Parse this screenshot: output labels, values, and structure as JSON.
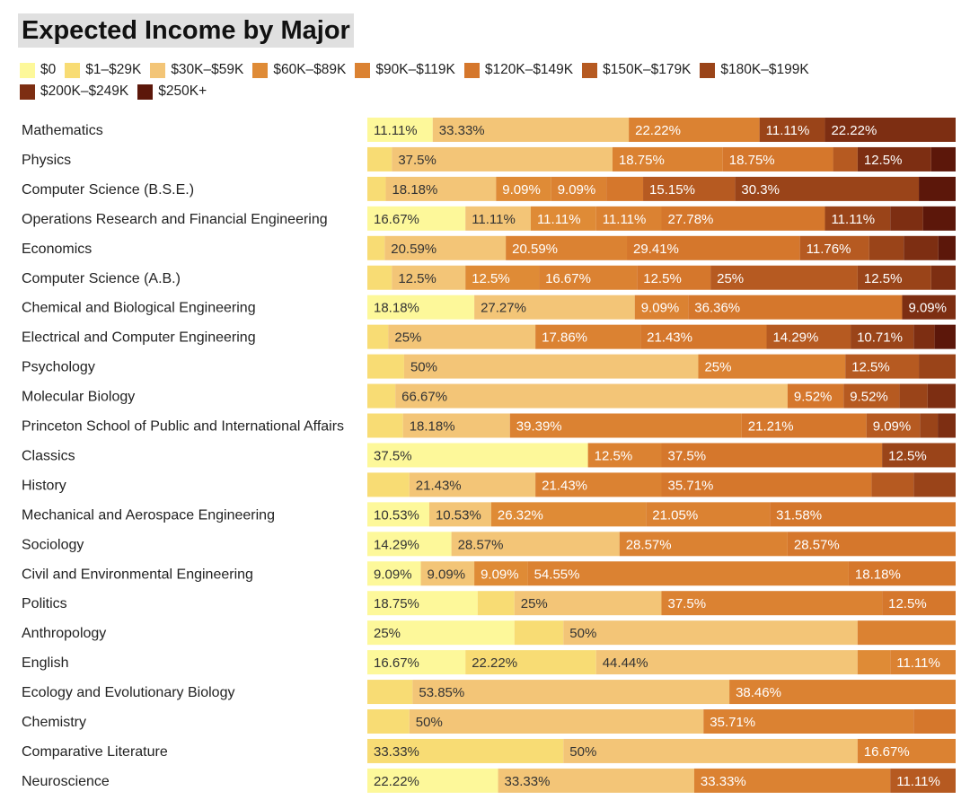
{
  "chart_data": {
    "type": "bar",
    "orientation": "horizontal",
    "stacked": true,
    "normalized": true,
    "title": "Expected Income by Major",
    "legend_position": "top",
    "brackets": [
      {
        "name": "$0",
        "color": "#fdf89a"
      },
      {
        "name": "$1–$29K",
        "color": "#f8dc74"
      },
      {
        "name": "$30K–$59K",
        "color": "#f3c577"
      },
      {
        "name": "$60K–$89K",
        "color": "#df8b36"
      },
      {
        "name": "$90K–$119K",
        "color": "#db8232"
      },
      {
        "name": "$120K–$149K",
        "color": "#d5772c"
      },
      {
        "name": "$150K–$179K",
        "color": "#b65a21"
      },
      {
        "name": "$180K–$199K",
        "color": "#9a4419"
      },
      {
        "name": "$200K–$249K",
        "color": "#7d2e12"
      },
      {
        "name": "$250K+",
        "color": "#5c170a"
      }
    ],
    "rows": [
      {
        "major": "Mathematics",
        "values": [
          11.11,
          0,
          33.33,
          0,
          22.22,
          0,
          0,
          11.11,
          22.22,
          0
        ]
      },
      {
        "major": "Physics",
        "values": [
          0,
          4.17,
          37.5,
          0,
          18.75,
          18.75,
          4.17,
          0,
          12.5,
          4.16
        ]
      },
      {
        "major": "Computer Science (B.S.E.)",
        "values": [
          0,
          3.03,
          18.18,
          9.09,
          9.09,
          6.06,
          15.15,
          30.3,
          0,
          6.06
        ]
      },
      {
        "major": "Operations Research and Financial Engineering",
        "values": [
          16.67,
          0,
          11.11,
          11.11,
          11.11,
          27.78,
          0,
          11.11,
          5.56,
          5.55
        ]
      },
      {
        "major": "Economics",
        "values": [
          0,
          2.94,
          20.59,
          0,
          20.59,
          29.41,
          11.76,
          5.88,
          5.88,
          2.94
        ]
      },
      {
        "major": "Computer Science (A.B.)",
        "values": [
          0,
          4.17,
          12.5,
          12.5,
          16.67,
          12.5,
          25,
          12.5,
          4.16,
          0
        ]
      },
      {
        "major": "Chemical and Biological Engineering",
        "values": [
          18.18,
          0,
          27.27,
          0,
          9.09,
          36.36,
          0,
          0,
          9.09,
          0
        ]
      },
      {
        "major": "Electrical and Computer Engineering",
        "values": [
          0,
          3.57,
          25,
          0,
          17.86,
          21.43,
          14.29,
          10.71,
          3.57,
          3.57
        ]
      },
      {
        "major": "Psychology",
        "values": [
          0,
          6.25,
          50,
          0,
          25,
          0,
          12.5,
          6.25,
          0,
          0
        ]
      },
      {
        "major": "Molecular Biology",
        "values": [
          0,
          4.76,
          66.67,
          0,
          0,
          9.52,
          9.52,
          4.76,
          4.77,
          0
        ]
      },
      {
        "major": "Princeton School of Public and International Affairs",
        "values": [
          0,
          6.06,
          18.18,
          0,
          39.39,
          21.21,
          9.09,
          3.03,
          3.04,
          0
        ]
      },
      {
        "major": "Classics",
        "values": [
          37.5,
          0,
          0,
          0,
          12.5,
          37.5,
          0,
          12.5,
          0,
          0
        ]
      },
      {
        "major": "History",
        "values": [
          0,
          7.14,
          21.43,
          0,
          21.43,
          35.71,
          7.15,
          7.14,
          0,
          0
        ]
      },
      {
        "major": "Mechanical and Aerospace Engineering",
        "values": [
          10.53,
          0,
          10.53,
          26.32,
          21.05,
          31.58,
          0,
          0,
          0,
          0
        ]
      },
      {
        "major": "Sociology",
        "values": [
          14.29,
          0,
          28.57,
          0,
          28.57,
          28.57,
          0,
          0,
          0,
          0
        ]
      },
      {
        "major": "Civil and Environmental Engineering",
        "values": [
          9.09,
          0,
          9.09,
          9.09,
          54.55,
          18.18,
          0,
          0,
          0,
          0
        ]
      },
      {
        "major": "Politics",
        "values": [
          18.75,
          6.25,
          25,
          0,
          37.5,
          12.5,
          0,
          0,
          0,
          0
        ]
      },
      {
        "major": "Anthropology",
        "values": [
          25,
          8.33,
          50,
          0,
          16.67,
          0,
          0,
          0,
          0,
          0
        ]
      },
      {
        "major": "English",
        "values": [
          16.67,
          22.22,
          44.44,
          5.56,
          11.11,
          0,
          0,
          0,
          0,
          0
        ]
      },
      {
        "major": "Ecology and Evolutionary Biology",
        "values": [
          0,
          7.69,
          53.85,
          0,
          38.46,
          0,
          0,
          0,
          0,
          0
        ]
      },
      {
        "major": "Chemistry",
        "values": [
          0,
          7.14,
          50,
          0,
          35.71,
          7.15,
          0,
          0,
          0,
          0
        ]
      },
      {
        "major": "Comparative Literature",
        "values": [
          0,
          33.33,
          50,
          0,
          16.67,
          0,
          0,
          0,
          0,
          0
        ]
      },
      {
        "major": "Neuroscience",
        "values": [
          22.22,
          0,
          33.33,
          0,
          33.33,
          0,
          11.11,
          0,
          0,
          0
        ]
      }
    ],
    "labeled_segments": [
      [
        [
          0,
          "11.11%"
        ],
        [
          2,
          "33.33%"
        ],
        [
          4,
          "22.22%"
        ],
        [
          7,
          "11.11%"
        ],
        [
          8,
          "22.22%"
        ]
      ],
      [
        [
          2,
          "37.5%"
        ],
        [
          4,
          "18.75%"
        ],
        [
          5,
          "18.75%"
        ],
        [
          8,
          "12.5%"
        ]
      ],
      [
        [
          2,
          "18.18%"
        ],
        [
          3,
          "9.09%"
        ],
        [
          4,
          "9.09%"
        ],
        [
          6,
          "15.15%"
        ],
        [
          7,
          "30.3%"
        ]
      ],
      [
        [
          0,
          "16.67%"
        ],
        [
          2,
          "11.11%"
        ],
        [
          3,
          "11.11%"
        ],
        [
          4,
          "11.11%"
        ],
        [
          5,
          "27.78%"
        ],
        [
          7,
          "11.11%"
        ]
      ],
      [
        [
          2,
          "20.59%"
        ],
        [
          4,
          "20.59%"
        ],
        [
          5,
          "29.41%"
        ],
        [
          6,
          "11.76%"
        ]
      ],
      [
        [
          2,
          "12.5%"
        ],
        [
          3,
          "12.5%"
        ],
        [
          4,
          "16.67%"
        ],
        [
          5,
          "12.5%"
        ],
        [
          6,
          "25%"
        ],
        [
          7,
          "12.5%"
        ]
      ],
      [
        [
          0,
          "18.18%"
        ],
        [
          2,
          "27.27%"
        ],
        [
          4,
          "9.09%"
        ],
        [
          5,
          "36.36%"
        ],
        [
          8,
          "9.09%"
        ]
      ],
      [
        [
          2,
          "25%"
        ],
        [
          4,
          "17.86%"
        ],
        [
          5,
          "21.43%"
        ],
        [
          6,
          "14.29%"
        ],
        [
          7,
          "10.71%"
        ]
      ],
      [
        [
          2,
          "50%"
        ],
        [
          4,
          "25%"
        ],
        [
          6,
          "12.5%"
        ]
      ],
      [
        [
          2,
          "66.67%"
        ],
        [
          5,
          "9.52%"
        ],
        [
          6,
          "9.52%"
        ]
      ],
      [
        [
          2,
          "18.18%"
        ],
        [
          4,
          "39.39%"
        ],
        [
          5,
          "21.21%"
        ],
        [
          6,
          "9.09%"
        ]
      ],
      [
        [
          0,
          "37.5%"
        ],
        [
          4,
          "12.5%"
        ],
        [
          5,
          "37.5%"
        ],
        [
          7,
          "12.5%"
        ]
      ],
      [
        [
          2,
          "21.43%"
        ],
        [
          4,
          "21.43%"
        ],
        [
          5,
          "35.71%"
        ]
      ],
      [
        [
          0,
          "10.53%"
        ],
        [
          2,
          "10.53%"
        ],
        [
          3,
          "26.32%"
        ],
        [
          4,
          "21.05%"
        ],
        [
          5,
          "31.58%"
        ]
      ],
      [
        [
          0,
          "14.29%"
        ],
        [
          2,
          "28.57%"
        ],
        [
          4,
          "28.57%"
        ],
        [
          5,
          "28.57%"
        ]
      ],
      [
        [
          0,
          "9.09%"
        ],
        [
          2,
          "9.09%"
        ],
        [
          3,
          "9.09%"
        ],
        [
          4,
          "54.55%"
        ],
        [
          5,
          "18.18%"
        ]
      ],
      [
        [
          0,
          "18.75%"
        ],
        [
          2,
          "25%"
        ],
        [
          4,
          "37.5%"
        ],
        [
          5,
          "12.5%"
        ]
      ],
      [
        [
          0,
          "25%"
        ],
        [
          2,
          "50%"
        ]
      ],
      [
        [
          0,
          "16.67%"
        ],
        [
          1,
          "22.22%"
        ],
        [
          2,
          "44.44%"
        ],
        [
          4,
          "11.11%"
        ]
      ],
      [
        [
          2,
          "53.85%"
        ],
        [
          4,
          "38.46%"
        ]
      ],
      [
        [
          2,
          "50%"
        ],
        [
          4,
          "35.71%"
        ]
      ],
      [
        [
          1,
          "33.33%"
        ],
        [
          2,
          "50%"
        ],
        [
          4,
          "16.67%"
        ]
      ],
      [
        [
          0,
          "22.22%"
        ],
        [
          2,
          "33.33%"
        ],
        [
          4,
          "33.33%"
        ],
        [
          6,
          "11.11%"
        ]
      ]
    ],
    "xlim": [
      0,
      100
    ],
    "xlabel": "",
    "ylabel": ""
  }
}
